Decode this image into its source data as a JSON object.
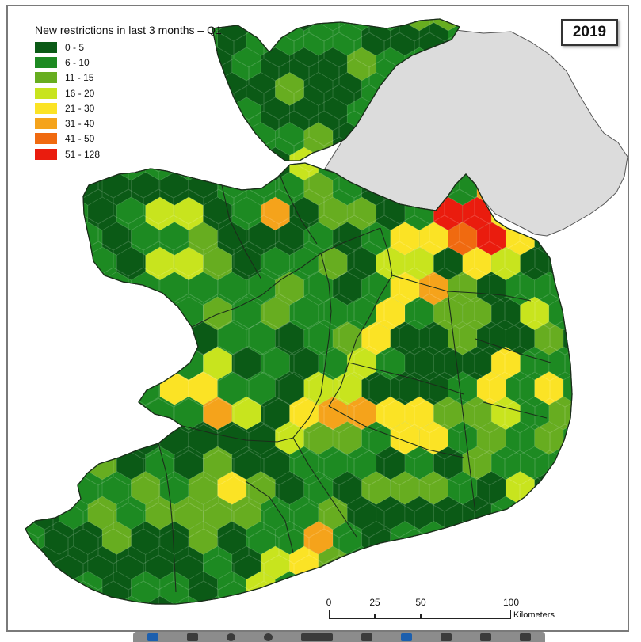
{
  "map": {
    "legend_title": "New restrictions in last 3 months – Q1",
    "year": "2019",
    "legend": [
      {
        "label": "0 - 5",
        "color": "#0b5a16"
      },
      {
        "label": "6 - 10",
        "color": "#1d8a22"
      },
      {
        "label": "11 - 15",
        "color": "#67ad20"
      },
      {
        "label": "16 - 20",
        "color": "#c8e41e"
      },
      {
        "label": "21 - 30",
        "color": "#fbe325"
      },
      {
        "label": "31 - 40",
        "color": "#f5a31b"
      },
      {
        "label": "41 - 50",
        "color": "#f06a10"
      },
      {
        "label": "51 - 128",
        "color": "#ea1c0e"
      }
    ],
    "neighbour_fill": "#dcdcdc",
    "scale": {
      "ticks": [
        "0",
        "25",
        "50",
        "100"
      ],
      "unit": "Kilometers"
    }
  },
  "toolbar": {
    "icons": [
      "cursor-icon",
      "hand-icon",
      "zoom-out-icon",
      "zoom-in-icon",
      "zoom-level-icon",
      "fit-page-icon",
      "pen-icon",
      "save-icon",
      "print-icon",
      "more-icon"
    ]
  }
}
